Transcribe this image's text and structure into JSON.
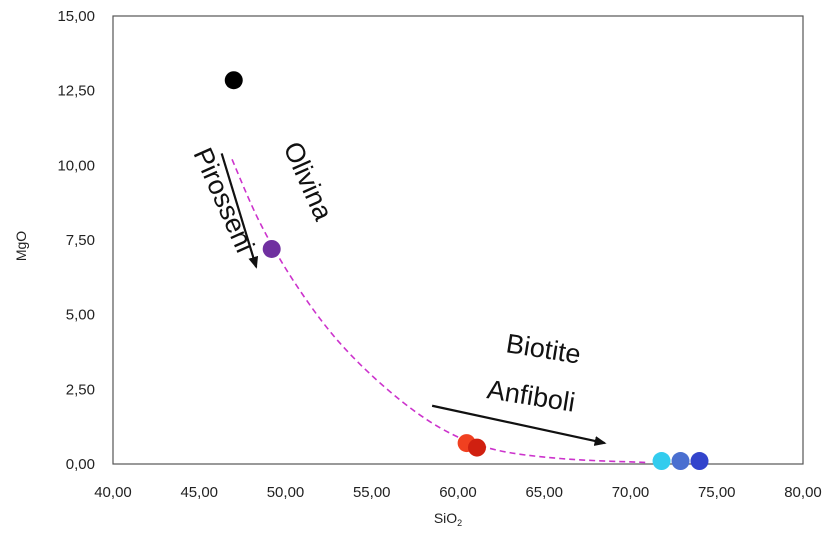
{
  "chart_data": {
    "type": "scatter",
    "xlabel": "SiO",
    "xlabel_sub": "2",
    "ylabel": "MgO",
    "xlim": [
      40,
      80
    ],
    "ylim": [
      0,
      15
    ],
    "xticks": [
      "40,00",
      "45,00",
      "50,00",
      "55,00",
      "60,00",
      "65,00",
      "70,00",
      "75,00",
      "80,00"
    ],
    "yticks": [
      "0,00",
      "2,50",
      "5,00",
      "7,50",
      "10,00",
      "12,50",
      "15,00"
    ],
    "grid": false,
    "points": [
      {
        "x": 47.0,
        "y": 12.85,
        "color": "#000000"
      },
      {
        "x": 49.2,
        "y": 7.2,
        "color": "#7030a0"
      },
      {
        "x": 60.5,
        "y": 0.7,
        "color": "#f04020"
      },
      {
        "x": 61.1,
        "y": 0.55,
        "color": "#d02010"
      },
      {
        "x": 71.8,
        "y": 0.1,
        "color": "#33ccee"
      },
      {
        "x": 72.9,
        "y": 0.1,
        "color": "#4a6fd0"
      },
      {
        "x": 74.0,
        "y": 0.1,
        "color": "#3344cc"
      }
    ],
    "trend_line": {
      "style": "dashed",
      "color": "#cc33cc",
      "points": [
        [
          46.9,
          10.2
        ],
        [
          48.5,
          8.1
        ],
        [
          50.5,
          6.1
        ],
        [
          53,
          4.15
        ],
        [
          56,
          2.45
        ],
        [
          59,
          1.2
        ],
        [
          62,
          0.5
        ],
        [
          66,
          0.18
        ],
        [
          71,
          0.05
        ]
      ]
    },
    "annotations": [
      {
        "text": "Olivina",
        "color": "#111111"
      },
      {
        "text": "Pirosseni",
        "color": "#111111"
      },
      {
        "text": "Biotite",
        "color": "#111111"
      },
      {
        "text": "Anfiboli",
        "color": "#111111"
      }
    ],
    "arrows": [
      {
        "from": [
          46.3,
          10.4
        ],
        "to": [
          48.3,
          6.6
        ],
        "color": "#111111"
      },
      {
        "from": [
          58.5,
          1.95
        ],
        "to": [
          68.5,
          0.7
        ],
        "color": "#111111"
      }
    ]
  }
}
